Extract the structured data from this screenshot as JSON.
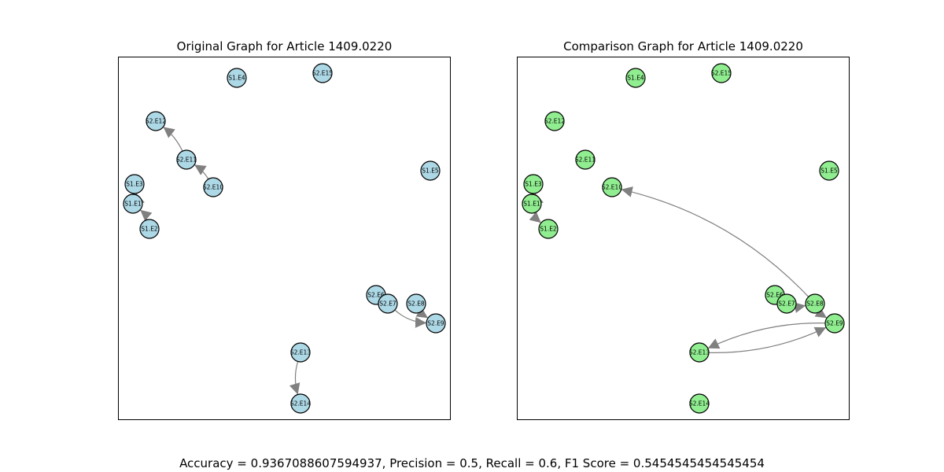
{
  "panels": [
    {
      "title": "Original Graph for Article 1409.0220",
      "node_color": "#add8e6",
      "nodes": [
        {
          "id": "S1.E4"
        },
        {
          "id": "S2.E15"
        },
        {
          "id": "S2.E12"
        },
        {
          "id": "S2.E11"
        },
        {
          "id": "S1.E5"
        },
        {
          "id": "S1.E3"
        },
        {
          "id": "S2.E10"
        },
        {
          "id": "S1.E1"
        },
        {
          "id": "S1.E2"
        },
        {
          "id": "S2.E6"
        },
        {
          "id": "S2.E7"
        },
        {
          "id": "S2.E8"
        },
        {
          "id": "S2.E9"
        },
        {
          "id": "S2.E13"
        },
        {
          "id": "S2.E14"
        }
      ],
      "edges": [
        {
          "from": "S2.E11",
          "to": "S2.E12"
        },
        {
          "from": "S2.E10",
          "to": "S2.E11"
        },
        {
          "from": "S1.E1",
          "to": "S1.E3"
        },
        {
          "from": "S1.E2",
          "to": "S1.E1"
        },
        {
          "from": "S2.E7",
          "to": "S2.E9"
        },
        {
          "from": "S2.E8",
          "to": "S2.E9"
        },
        {
          "from": "S2.E13",
          "to": "S2.E14"
        }
      ]
    },
    {
      "title": "Comparison Graph for Article 1409.0220",
      "node_color": "#90ee90",
      "nodes": [
        {
          "id": "S1.E4"
        },
        {
          "id": "S2.E15"
        },
        {
          "id": "S2.E12"
        },
        {
          "id": "S2.E11"
        },
        {
          "id": "S1.E5"
        },
        {
          "id": "S1.E3"
        },
        {
          "id": "S2.E10"
        },
        {
          "id": "S1.E1"
        },
        {
          "id": "S1.E2"
        },
        {
          "id": "S2.E6"
        },
        {
          "id": "S2.E7"
        },
        {
          "id": "S2.E8"
        },
        {
          "id": "S2.E9"
        },
        {
          "id": "S2.E13"
        },
        {
          "id": "S2.E14"
        }
      ],
      "edges": [
        {
          "from": "S1.E1",
          "to": "S1.E3"
        },
        {
          "from": "S1.E1",
          "to": "S1.E2"
        },
        {
          "from": "S2.E8",
          "to": "S2.E10"
        },
        {
          "from": "S2.E7",
          "to": "S2.E8"
        },
        {
          "from": "S2.E8",
          "to": "S2.E9"
        },
        {
          "from": "S2.E9",
          "to": "S2.E13"
        },
        {
          "from": "S2.E13",
          "to": "S2.E9"
        }
      ]
    }
  ],
  "edge_color": "#808080",
  "metrics_text": "Accuracy = 0.9367088607594937, Precision = 0.5, Recall = 0.6, F1 Score = 0.5454545454545454"
}
